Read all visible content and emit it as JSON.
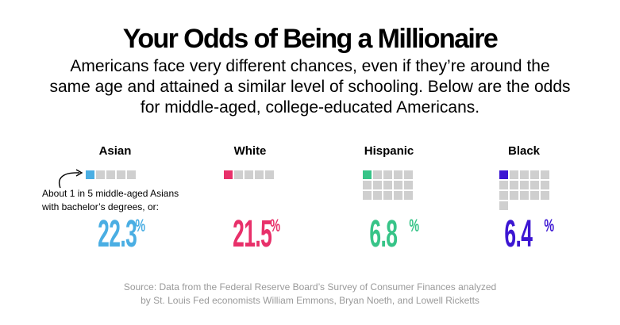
{
  "title": "Your Odds of Being a Millionaire",
  "subtitle": "Americans face very different chances, even if they’re around the same age and attained a similar level of schooling. Below are the odds for middle-aged, college-educated Americans.",
  "note": {
    "line1": "About 1 in 5 middle-aged Asians",
    "line2": "with bachelor’s degrees, or:"
  },
  "source": {
    "line1": "Source: Data from the Federal Reserve Board’s Survey of Consumer Finances analyzed",
    "line2": "by St. Louis Fed economists William Emmons, Bryan Noeth, and Lowell Ricketts"
  },
  "percent_sign": "%",
  "chart_data": {
    "type": "pictogram",
    "unit": "%",
    "categories": [
      "Asian",
      "White",
      "Hispanic",
      "Black"
    ],
    "values": [
      22.3,
      21.5,
      6.8,
      6.4
    ],
    "odds_one_in": [
      5,
      5,
      15,
      16
    ],
    "colors": [
      "#4aaee3",
      "#e8306a",
      "#37c488",
      "#3c16d2"
    ],
    "empty_color": "#cfcfcf"
  }
}
